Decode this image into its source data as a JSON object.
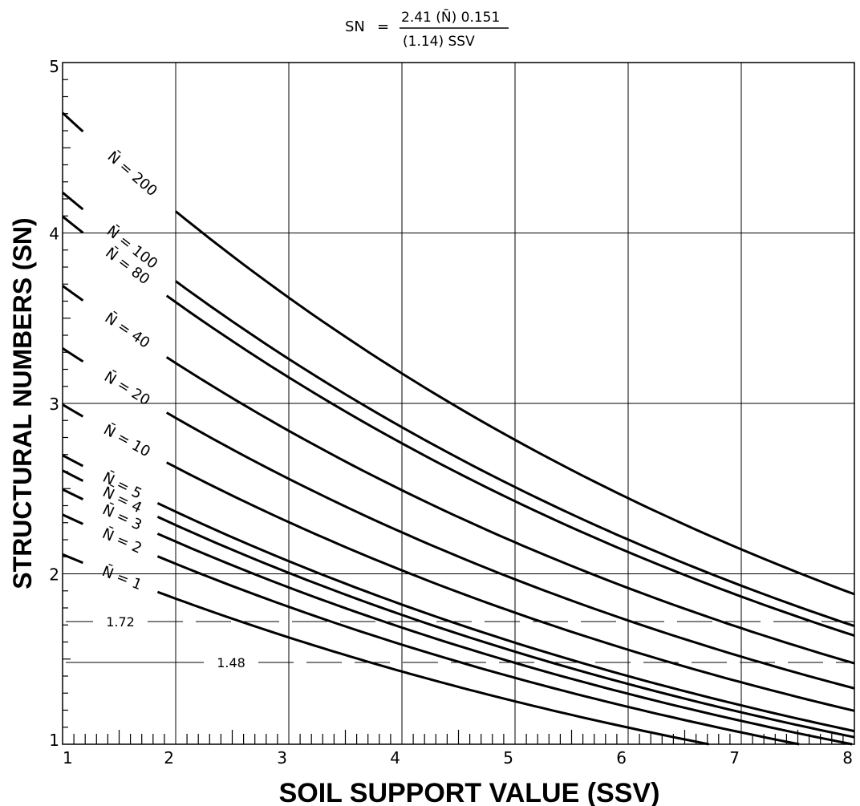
{
  "chart_data": {
    "type": "line",
    "formula": {
      "lhs": "SN",
      "eq": "=",
      "numerator": "2.41  (N̄) 0.151",
      "denominator": "(1.14) SSV"
    },
    "title": "",
    "xlabel": "SOIL SUPPORT VALUE (SSV)",
    "ylabel": "STRUCTURAL NUMBERS (SN)",
    "xlim": [
      1,
      8
    ],
    "ylim": [
      1,
      5
    ],
    "x_major_ticks": [
      1,
      2,
      3,
      4,
      5,
      6,
      7,
      8
    ],
    "x_tick_labels": [
      "1",
      "2",
      "3",
      "4",
      "5",
      "6",
      "7",
      "8"
    ],
    "y_major_ticks": [
      1,
      2,
      3,
      4,
      5
    ],
    "y_tick_labels": [
      "1",
      "2",
      "3",
      "4",
      "5"
    ],
    "minor_ticks_per_unit": 10,
    "grid": true,
    "curve_equation": "SN = 2.41 * N^0.151 / 1.14^SSV",
    "series": [
      {
        "name": "N̄ = 200",
        "label_text": "N = 200",
        "N": 200,
        "x": [
          1,
          2,
          3,
          4,
          5,
          6,
          7,
          8
        ],
        "y": [
          4.7,
          4.12,
          3.62,
          3.17,
          2.78,
          2.44,
          2.14,
          1.88
        ]
      },
      {
        "name": "N̄ = 100",
        "label_text": "N = 100",
        "N": 100,
        "x": [
          1,
          2,
          3,
          4,
          5,
          6,
          7,
          8
        ],
        "y": [
          4.24,
          3.72,
          3.26,
          2.86,
          2.51,
          2.2,
          1.93,
          1.69
        ]
      },
      {
        "name": "N̄ = 80",
        "label_text": "N = 80",
        "N": 80,
        "x": [
          1,
          2,
          3,
          4,
          5,
          6,
          7,
          8
        ],
        "y": [
          4.1,
          3.6,
          3.16,
          2.77,
          2.43,
          2.13,
          1.87,
          1.64
        ]
      },
      {
        "name": "N̄ = 40",
        "label_text": "N = 40",
        "N": 40,
        "x": [
          1,
          2,
          3,
          4,
          5,
          6,
          7,
          8
        ],
        "y": [
          3.7,
          3.25,
          2.85,
          2.5,
          2.19,
          1.92,
          1.69,
          1.48
        ]
      },
      {
        "name": "N̄ = 20",
        "label_text": "N = 20",
        "N": 20,
        "x": [
          1,
          2,
          3,
          4,
          5,
          6,
          7,
          8
        ],
        "y": [
          3.34,
          2.93,
          2.57,
          2.25,
          1.98,
          1.73,
          1.52,
          1.33
        ]
      },
      {
        "name": "N̄ = 10",
        "label_text": "N = 10",
        "N": 10,
        "x": [
          1,
          2,
          3,
          4,
          5,
          6,
          7,
          8
        ],
        "y": [
          3.01,
          2.64,
          2.32,
          2.03,
          1.78,
          1.56,
          1.37,
          1.2
        ]
      },
      {
        "name": "N̄ = 5",
        "label_text": "N = 5",
        "N": 5,
        "x": [
          1,
          2,
          3,
          4,
          5,
          6,
          7,
          8
        ],
        "y": [
          2.72,
          2.38,
          2.09,
          1.83,
          1.61,
          1.41,
          1.24,
          1.09
        ]
      },
      {
        "name": "N̄ = 4",
        "label_text": "N = 4",
        "N": 4,
        "x": [
          1,
          2,
          3,
          4,
          5,
          6,
          7,
          8
        ],
        "y": [
          2.63,
          2.31,
          2.02,
          1.78,
          1.56,
          1.36,
          1.2,
          1.05
        ]
      },
      {
        "name": "N̄ = 3",
        "label_text": "N = 3",
        "N": 3,
        "x": [
          1,
          2,
          3,
          4,
          5,
          6,
          7,
          8
        ],
        "y": [
          2.52,
          2.21,
          1.94,
          1.7,
          1.49,
          1.31,
          1.15,
          1.01
        ]
      },
      {
        "name": "N̄ = 2",
        "label_text": "N = 2",
        "N": 2,
        "x": [
          1,
          2,
          3,
          4,
          5,
          6,
          7,
          8
        ],
        "y": [
          2.38,
          2.08,
          1.83,
          1.6,
          1.41,
          1.23,
          1.08,
          0.95
        ]
      },
      {
        "name": "N̄ = 1",
        "label_text": "N = 1",
        "N": 1,
        "x": [
          1,
          2,
          3,
          4,
          5,
          6,
          7,
          8
        ],
        "y": [
          2.14,
          1.88,
          1.65,
          1.44,
          1.27,
          1.11,
          0.98,
          0.86
        ]
      }
    ],
    "reference_lines": [
      {
        "y": 1.72,
        "label": "1.72",
        "style": "dashed"
      },
      {
        "y": 1.48,
        "label": "1.48",
        "style": "dashed"
      }
    ],
    "colors": {
      "line": "#000000",
      "grid": "#000000",
      "background": "#ffffff"
    }
  }
}
